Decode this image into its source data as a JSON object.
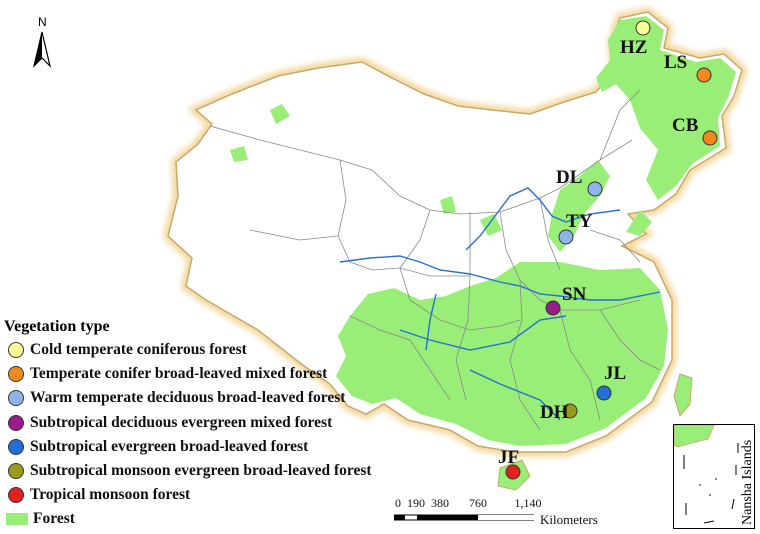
{
  "north_label": "N",
  "sites": [
    {
      "code": "HZ",
      "color": "#ffff99"
    },
    {
      "code": "LS",
      "color": "#f2891f"
    },
    {
      "code": "CB",
      "color": "#f2891f"
    },
    {
      "code": "DL",
      "color": "#8fb5e8"
    },
    {
      "code": "TY",
      "color": "#8fb5e8"
    },
    {
      "code": "SN",
      "color": "#9b1b8c"
    },
    {
      "code": "JL",
      "color": "#1f6fd6"
    },
    {
      "code": "DH",
      "color": "#9a9a1e"
    },
    {
      "code": "JF",
      "color": "#e32020"
    }
  ],
  "legend": {
    "title": "Vegetation type",
    "items": [
      {
        "label": "Cold temperate coniferous forest",
        "color": "#ffff99",
        "shape": "circle"
      },
      {
        "label": "Temperate conifer broad-leaved mixed forest",
        "color": "#f2891f",
        "shape": "circle"
      },
      {
        "label": "Warm temperate deciduous broad-leaved forest",
        "color": "#8fb5e8",
        "shape": "circle"
      },
      {
        "label": "Subtropical deciduous evergreen mixed forest",
        "color": "#9b1b8c",
        "shape": "circle"
      },
      {
        "label": "Subtropical evergreen broad-leaved forest",
        "color": "#1f6fd6",
        "shape": "circle"
      },
      {
        "label": "Subtropical monsoon evergreen broad-leaved forest",
        "color": "#9a9a1e",
        "shape": "circle"
      },
      {
        "label": "Tropical monsoon forest",
        "color": "#e32020",
        "shape": "circle"
      },
      {
        "label": "Forest",
        "color": "#99ee77",
        "shape": "rect"
      }
    ]
  },
  "scale_bar": {
    "ticks": [
      "0",
      "190",
      "380",
      "760",
      "1,140"
    ],
    "unit": "Kilometers"
  },
  "inset": {
    "label": "Nansha Islands"
  },
  "colors": {
    "forest": "#99ee77",
    "border_glow": "#f3d9a0",
    "boundary": "#8a8a8a",
    "river": "#2a6fd1"
  }
}
